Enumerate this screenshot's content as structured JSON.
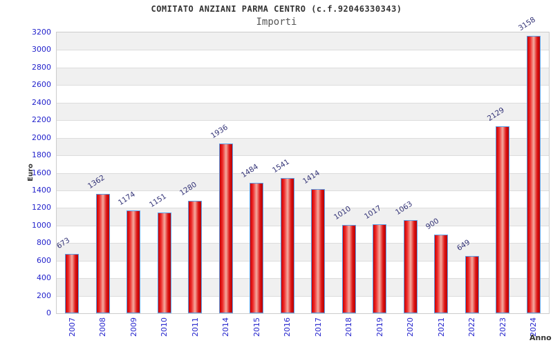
{
  "chart_data": {
    "type": "bar",
    "title": "COMITATO ANZIANI PARMA CENTRO (c.f.92046330343)",
    "subtitle": "Importi",
    "xlabel": "Anno",
    "ylabel": "Euro",
    "categories": [
      "2007",
      "2008",
      "2009",
      "2010",
      "2011",
      "2014",
      "2015",
      "2016",
      "2017",
      "2018",
      "2019",
      "2020",
      "2021",
      "2022",
      "2023",
      "2024"
    ],
    "values": [
      673,
      1362,
      1174,
      1151,
      1280,
      1936,
      1484,
      1541,
      1414,
      1010,
      1017,
      1063,
      900,
      649,
      2129,
      3158
    ],
    "ylim": [
      0,
      3200
    ],
    "yticks": [
      0,
      200,
      400,
      600,
      800,
      1000,
      1200,
      1400,
      1600,
      1800,
      2000,
      2200,
      2400,
      2600,
      2800,
      3000,
      3200
    ],
    "grid": "horizontal-bands-alternating",
    "legend": "none",
    "value_labels": "above-bars-rotated",
    "colors": {
      "title": "#333333",
      "subtitle": "#555555",
      "axis_title": "#333333",
      "tick_label": "#2222cc",
      "value_label": "#333377",
      "bar_border": "#59a0e8",
      "bar_gradient": [
        "#cc0000",
        "#ee2a2a",
        "#f5ab9f",
        "#dd1515",
        "#b80000"
      ],
      "band_fill": "#f0f0f0",
      "grid_line": "#dcdcdc",
      "plot_border": "#cccccc"
    }
  }
}
